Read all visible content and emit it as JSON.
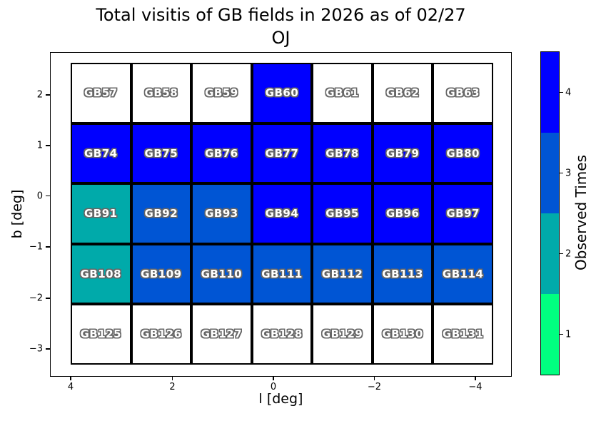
{
  "title": {
    "line1": "Total visitis of GB fields in 2026 as of 02/27",
    "line2": "OJ"
  },
  "axes": {
    "xlabel": "l [deg]",
    "ylabel": "b [deg]",
    "xtick_labels": [
      "4",
      "2",
      "0",
      "−2",
      "−4"
    ],
    "ytick_labels": [
      "2",
      "1",
      "0",
      "−1",
      "−2",
      "−3"
    ]
  },
  "colorbar": {
    "label": "Observed Times",
    "tick_labels": [
      "4",
      "3",
      "2",
      "1"
    ],
    "segment_colors_top_to_bottom": [
      "#0000ff",
      "#0055d4",
      "#00aaaa",
      "#00ff80"
    ]
  },
  "chart_data": {
    "type": "heatmap",
    "title": "Total visitis of GB fields in 2026 as of 02/27 OJ",
    "xlabel": "l [deg]",
    "ylabel": "b [deg]",
    "colorbar_label": "Observed Times",
    "x_ticks": [
      4,
      2,
      0,
      -2,
      -4
    ],
    "y_ticks": [
      2,
      1,
      0,
      -1,
      -2,
      -3
    ],
    "x_axis_inverted": true,
    "colorbar_range": [
      1,
      4
    ],
    "value_colors": {
      "0": "#ffffff",
      "1": "#00ff80",
      "2": "#00aaaa",
      "3": "#0055d4",
      "4": "#0000ff"
    },
    "rows": [
      {
        "labels": [
          "GB57",
          "GB58",
          "GB59",
          "GB60",
          "GB61",
          "GB62",
          "GB63"
        ],
        "observed": [
          0,
          0,
          0,
          4,
          0,
          0,
          0
        ]
      },
      {
        "labels": [
          "GB74",
          "GB75",
          "GB76",
          "GB77",
          "GB78",
          "GB79",
          "GB80"
        ],
        "observed": [
          4,
          4,
          4,
          4,
          4,
          4,
          4
        ]
      },
      {
        "labels": [
          "GB91",
          "GB92",
          "GB93",
          "GB94",
          "GB95",
          "GB96",
          "GB97"
        ],
        "observed": [
          2,
          3,
          3,
          4,
          4,
          4,
          4
        ]
      },
      {
        "labels": [
          "GB108",
          "GB109",
          "GB110",
          "GB111",
          "GB112",
          "GB113",
          "GB114"
        ],
        "observed": [
          2,
          3,
          3,
          3,
          3,
          3,
          3
        ]
      },
      {
        "labels": [
          "GB125",
          "GB126",
          "GB127",
          "GB128",
          "GB129",
          "GB130",
          "GB131"
        ],
        "observed": [
          0,
          0,
          0,
          0,
          0,
          0,
          0
        ]
      }
    ]
  }
}
